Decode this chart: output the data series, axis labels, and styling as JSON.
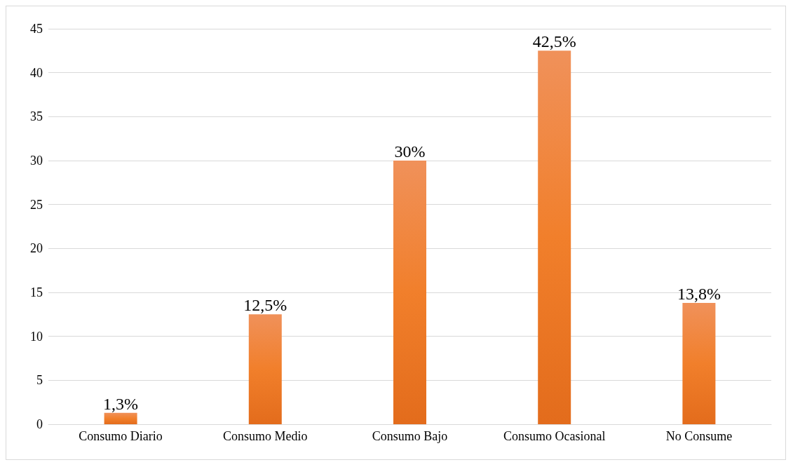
{
  "chart_data": {
    "type": "bar",
    "categories": [
      "Consumo Diario",
      "Consumo Medio",
      "Consumo Bajo",
      "Consumo Ocasional",
      "No Consume"
    ],
    "values": [
      1.3,
      12.5,
      30,
      42.5,
      13.8
    ],
    "value_labels": [
      "1,3%",
      "12,5%",
      "30%",
      "42,5%",
      "13,8%"
    ],
    "color": "#f17f2b",
    "ylim": [
      0,
      45
    ],
    "yticks": [
      0,
      5,
      10,
      15,
      20,
      25,
      30,
      35,
      40,
      45
    ],
    "grid": "y"
  }
}
